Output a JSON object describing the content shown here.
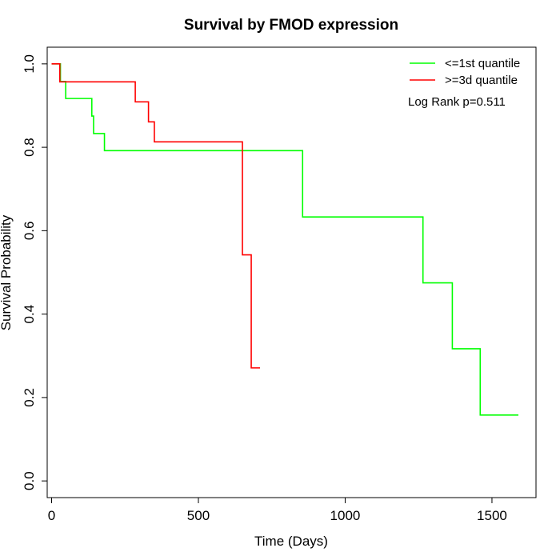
{
  "chart_data": {
    "type": "line",
    "title": "Survival by FMOD expression",
    "xlabel": "Time (Days)",
    "ylabel": "Survival Probability",
    "xlim": [
      -15,
      1650
    ],
    "ylim": [
      -0.04,
      1.04
    ],
    "x_ticks": [
      0,
      500,
      1000,
      1500
    ],
    "y_ticks": [
      0.0,
      0.2,
      0.4,
      0.6,
      0.8,
      1.0
    ],
    "x_tick_labels": [
      "0",
      "500",
      "1000",
      "1500"
    ],
    "y_tick_labels": [
      "0.0",
      "0.2",
      "0.4",
      "0.6",
      "0.8",
      "1.0"
    ],
    "legend_position": "top-right",
    "annotation": "Log Rank p=0.511",
    "grid": false,
    "series": [
      {
        "name": "<=1st quantile",
        "color": "#00ff00",
        "step": true,
        "x": [
          0,
          30,
          48,
          137,
          143,
          180,
          855,
          1265,
          1365,
          1460,
          1590
        ],
        "y": [
          1.0,
          0.958,
          0.917,
          0.875,
          0.833,
          0.792,
          0.633,
          0.475,
          0.317,
          0.158,
          0.158
        ]
      },
      {
        "name": ">=3d quantile",
        "color": "#ff0000",
        "step": true,
        "x": [
          0,
          28,
          285,
          330,
          350,
          650,
          680,
          710
        ],
        "y": [
          1.0,
          0.957,
          0.909,
          0.861,
          0.813,
          0.542,
          0.271,
          0.271
        ]
      }
    ]
  }
}
